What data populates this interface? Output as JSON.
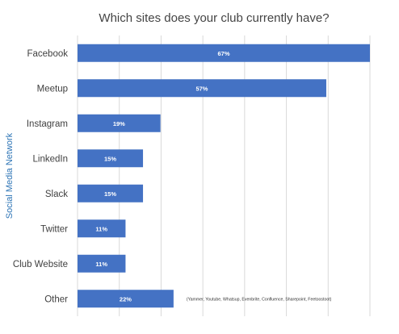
{
  "chart_data": {
    "type": "bar",
    "orientation": "horizontal",
    "title": "Which sites does your club currently have?",
    "ylabel": "Social Media Network",
    "xlabel": "",
    "categories": [
      "Facebook",
      "Meetup",
      "Instagram",
      "LinkedIn",
      "Slack",
      "Twitter",
      "Club Website",
      "Other"
    ],
    "values": [
      67,
      57,
      19,
      15,
      15,
      11,
      11,
      22
    ],
    "data_labels": [
      "67%",
      "57%",
      "19%",
      "15%",
      "15%",
      "11%",
      "11%",
      "22%"
    ],
    "xlim": [
      0,
      67
    ],
    "grid": true,
    "bar_color": "#4472c4",
    "annotations": [
      {
        "category": "Other",
        "text": "(Yammer, Youtube, Whatsup, Evenbrite, Confluence, Sharepoint, Feetoostoot)"
      }
    ]
  }
}
